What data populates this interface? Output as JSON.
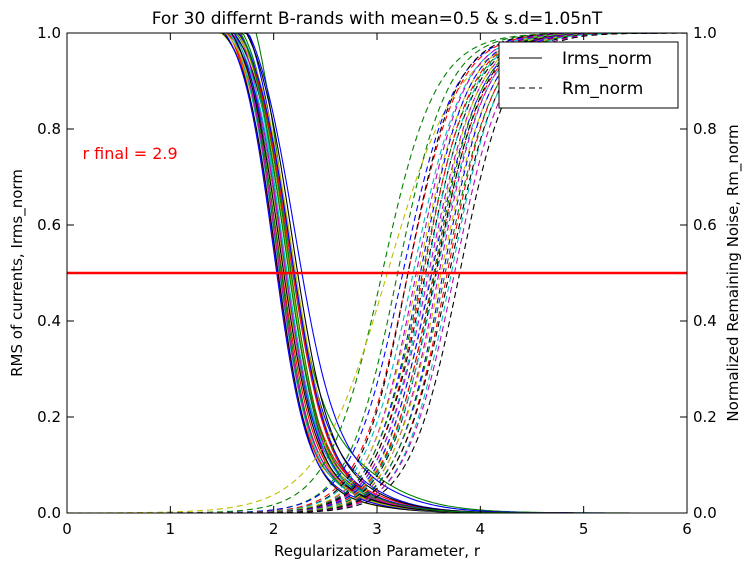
{
  "chart_data": {
    "type": "line",
    "title": "For 30 differnt B-rands with mean=0.5 & s.d=1.05nT",
    "xlabel": "Regularization Parameter, r",
    "ylabel_left": "RMS of currents, Irms_norm",
    "ylabel_right": "Normalized Remaining Noise, Rm_norm",
    "xlim": [
      0,
      6
    ],
    "ylim_left": [
      0,
      1
    ],
    "ylim_right": [
      0,
      1
    ],
    "grid": false,
    "legend_position": "top-right",
    "x_ticks": [
      "0",
      "1",
      "2",
      "3",
      "4",
      "5",
      "6"
    ],
    "y_ticks": [
      "0.0",
      "0.2",
      "0.4",
      "0.6",
      "0.8",
      "1.0"
    ],
    "legend": [
      {
        "label": "Irms_norm",
        "style": "solid"
      },
      {
        "label": "Rm_norm",
        "style": "dashed"
      }
    ],
    "annotation": {
      "text": "r final = 2.9",
      "x": 0.15,
      "y": 0.75,
      "color": "#ff0000"
    },
    "threshold": {
      "y": 0.5,
      "color": "#ff0000"
    },
    "palette": [
      "#0000ff",
      "#008000",
      "#ff0000",
      "#00bfbf",
      "#bf00bf",
      "#bfbf00",
      "#000000"
    ],
    "irms_series": [
      {
        "color": "#0000ff",
        "r0": 2.12,
        "w": 0.18,
        "sh": 0.12,
        "sc": 2.8,
        "ss": 0.3
      },
      {
        "color": "#008000",
        "r0": 2.08,
        "w": 0.17,
        "sh": 0.2,
        "sc": 2.8,
        "ss": 0.35
      },
      {
        "color": "#ff0000",
        "r0": 2.05,
        "w": 0.17,
        "sh": 0.05,
        "sc": 2.9,
        "ss": 0.3
      },
      {
        "color": "#00bfbf",
        "r0": 2.15,
        "w": 0.18,
        "sh": 0.07,
        "sc": 2.7,
        "ss": 0.3
      },
      {
        "color": "#bf00bf",
        "r0": 2.1,
        "w": 0.17,
        "sh": 0.04,
        "sc": 2.8,
        "ss": 0.3
      },
      {
        "color": "#bfbf00",
        "r0": 2.05,
        "w": 0.16,
        "sh": 0.03,
        "sc": 2.9,
        "ss": 0.3
      },
      {
        "color": "#000000",
        "r0": 2.12,
        "w": 0.17,
        "sh": 0.05,
        "sc": 2.8,
        "ss": 0.3
      },
      {
        "color": "#0000ff",
        "r0": 2.2,
        "w": 0.2,
        "sh": 0.1,
        "sc": 3.0,
        "ss": 0.32
      },
      {
        "color": "#008000",
        "r0": 2.12,
        "w": 0.16,
        "sh": 0.07,
        "sc": 2.8,
        "ss": 0.3
      },
      {
        "color": "#ff0000",
        "r0": 2.0,
        "w": 0.16,
        "sh": 0.06,
        "sc": 2.9,
        "ss": 0.3
      },
      {
        "color": "#00bfbf",
        "r0": 2.08,
        "w": 0.16,
        "sh": 0.08,
        "sc": 2.8,
        "ss": 0.3
      },
      {
        "color": "#bf00bf",
        "r0": 2.16,
        "w": 0.18,
        "sh": 0.06,
        "sc": 2.8,
        "ss": 0.3
      },
      {
        "color": "#bfbf00",
        "r0": 2.18,
        "w": 0.18,
        "sh": 0.05,
        "sc": 2.9,
        "ss": 0.3
      },
      {
        "color": "#000000",
        "r0": 2.02,
        "w": 0.16,
        "sh": 0.04,
        "sc": 2.8,
        "ss": 0.3
      },
      {
        "color": "#0000ff",
        "r0": 2.06,
        "w": 0.17,
        "sh": 0.07,
        "sc": 2.9,
        "ss": 0.3
      },
      {
        "color": "#008000",
        "r0": 2.14,
        "w": 0.17,
        "sh": 0.05,
        "sc": 2.8,
        "ss": 0.3
      },
      {
        "color": "#ff0000",
        "r0": 2.1,
        "w": 0.17,
        "sh": 0.08,
        "sc": 2.9,
        "ss": 0.3
      },
      {
        "color": "#00bfbf",
        "r0": 2.02,
        "w": 0.16,
        "sh": 0.06,
        "sc": 2.8,
        "ss": 0.3
      },
      {
        "color": "#bf00bf",
        "r0": 2.06,
        "w": 0.17,
        "sh": 0.09,
        "sc": 2.8,
        "ss": 0.3
      },
      {
        "color": "#bfbf00",
        "r0": 2.12,
        "w": 0.17,
        "sh": 0.06,
        "sc": 2.8,
        "ss": 0.3
      },
      {
        "color": "#000000",
        "r0": 2.18,
        "w": 0.18,
        "sh": 0.08,
        "sc": 2.9,
        "ss": 0.3
      },
      {
        "color": "#0000ff",
        "r0": 2.0,
        "w": 0.16,
        "sh": 0.05,
        "sc": 2.8,
        "ss": 0.3
      },
      {
        "color": "#008000",
        "r0": 2.04,
        "w": 0.16,
        "sh": 0.06,
        "sc": 2.8,
        "ss": 0.3
      },
      {
        "color": "#ff0000",
        "r0": 2.14,
        "w": 0.18,
        "sh": 0.07,
        "sc": 2.8,
        "ss": 0.3
      },
      {
        "color": "#00bfbf",
        "r0": 2.1,
        "w": 0.17,
        "sh": 0.05,
        "sc": 2.9,
        "ss": 0.3
      },
      {
        "color": "#bf00bf",
        "r0": 2.02,
        "w": 0.16,
        "sh": 0.07,
        "sc": 2.8,
        "ss": 0.3
      },
      {
        "color": "#bfbf00",
        "r0": 2.08,
        "w": 0.17,
        "sh": 0.04,
        "sc": 2.9,
        "ss": 0.3
      },
      {
        "color": "#000000",
        "r0": 2.06,
        "w": 0.17,
        "sh": 0.06,
        "sc": 2.8,
        "ss": 0.3
      },
      {
        "color": "#0000ff",
        "r0": 2.16,
        "w": 0.18,
        "sh": 0.06,
        "sc": 2.9,
        "ss": 0.3
      },
      {
        "color": "#008000",
        "r0": 2.1,
        "w": 0.17,
        "sh": 0.08,
        "sc": 2.8,
        "ss": 0.3
      }
    ],
    "rm_series": [
      {
        "color": "#008000",
        "r0": 3.05,
        "w": 0.26
      },
      {
        "color": "#bfbf00",
        "r0": 3.1,
        "w": 0.34
      },
      {
        "color": "#008000",
        "r0": 3.2,
        "w": 0.24
      },
      {
        "color": "#0000ff",
        "r0": 3.25,
        "w": 0.25
      },
      {
        "color": "#ff0000",
        "r0": 3.3,
        "w": 0.24
      },
      {
        "color": "#000000",
        "r0": 3.3,
        "w": 0.23
      },
      {
        "color": "#00bfbf",
        "r0": 3.35,
        "w": 0.24
      },
      {
        "color": "#bf00bf",
        "r0": 3.38,
        "w": 0.23
      },
      {
        "color": "#bfbf00",
        "r0": 3.4,
        "w": 0.24
      },
      {
        "color": "#0000ff",
        "r0": 3.42,
        "w": 0.23
      },
      {
        "color": "#008000",
        "r0": 3.44,
        "w": 0.24
      },
      {
        "color": "#ff0000",
        "r0": 3.45,
        "w": 0.23
      },
      {
        "color": "#000000",
        "r0": 3.47,
        "w": 0.24
      },
      {
        "color": "#00bfbf",
        "r0": 3.48,
        "w": 0.23
      },
      {
        "color": "#bf00bf",
        "r0": 3.5,
        "w": 0.24
      },
      {
        "color": "#bfbf00",
        "r0": 3.52,
        "w": 0.23
      },
      {
        "color": "#0000ff",
        "r0": 3.53,
        "w": 0.24
      },
      {
        "color": "#008000",
        "r0": 3.55,
        "w": 0.23
      },
      {
        "color": "#ff0000",
        "r0": 3.56,
        "w": 0.24
      },
      {
        "color": "#000000",
        "r0": 3.57,
        "w": 0.23
      },
      {
        "color": "#00bfbf",
        "r0": 3.58,
        "w": 0.24
      },
      {
        "color": "#bf00bf",
        "r0": 3.6,
        "w": 0.23
      },
      {
        "color": "#bfbf00",
        "r0": 3.62,
        "w": 0.24
      },
      {
        "color": "#0000ff",
        "r0": 3.64,
        "w": 0.23
      },
      {
        "color": "#008000",
        "r0": 3.66,
        "w": 0.24
      },
      {
        "color": "#ff0000",
        "r0": 3.68,
        "w": 0.23
      },
      {
        "color": "#000000",
        "r0": 3.7,
        "w": 0.24
      },
      {
        "color": "#00bfbf",
        "r0": 3.72,
        "w": 0.23
      },
      {
        "color": "#bf00bf",
        "r0": 3.75,
        "w": 0.24
      },
      {
        "color": "#000000",
        "r0": 3.8,
        "w": 0.24
      }
    ]
  }
}
